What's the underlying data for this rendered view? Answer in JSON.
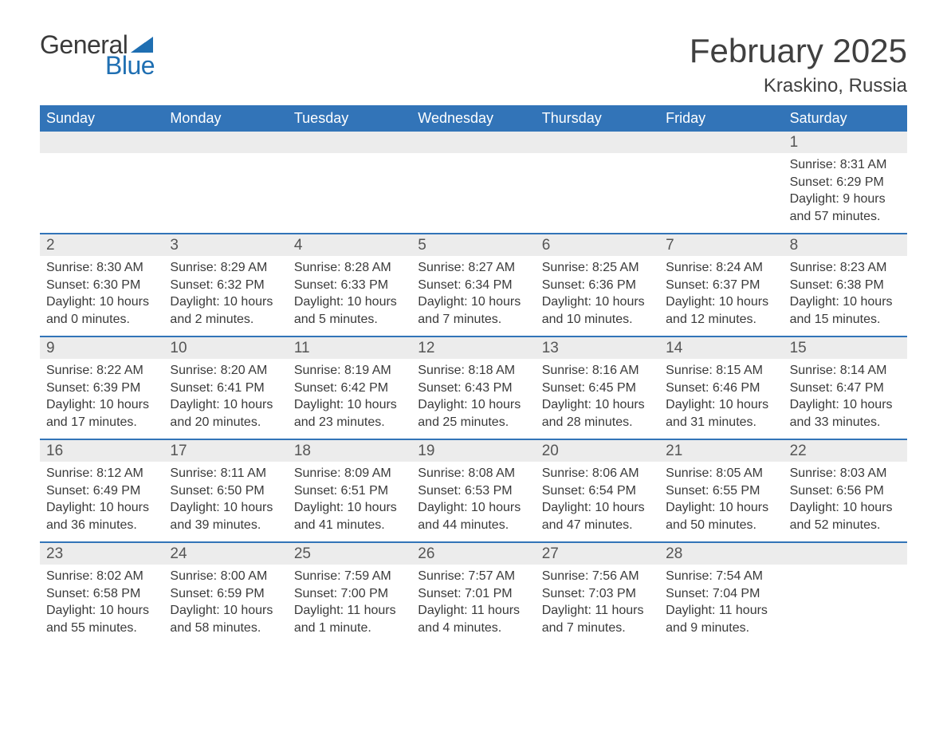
{
  "logo": {
    "word1": "General",
    "word2": "Blue",
    "flag_color": "#1f6fb2"
  },
  "title": "February 2025",
  "location": "Kraskino, Russia",
  "colors": {
    "header_bg": "#3274b8",
    "header_text": "#ffffff",
    "daynum_bg": "#ececec",
    "week_border": "#3274b8",
    "body_text": "#3a3a3a"
  },
  "day_names": [
    "Sunday",
    "Monday",
    "Tuesday",
    "Wednesday",
    "Thursday",
    "Friday",
    "Saturday"
  ],
  "weeks": [
    [
      null,
      null,
      null,
      null,
      null,
      null,
      {
        "n": "1",
        "sunrise": "8:31 AM",
        "sunset": "6:29 PM",
        "daylight": "9 hours and 57 minutes."
      }
    ],
    [
      {
        "n": "2",
        "sunrise": "8:30 AM",
        "sunset": "6:30 PM",
        "daylight": "10 hours and 0 minutes."
      },
      {
        "n": "3",
        "sunrise": "8:29 AM",
        "sunset": "6:32 PM",
        "daylight": "10 hours and 2 minutes."
      },
      {
        "n": "4",
        "sunrise": "8:28 AM",
        "sunset": "6:33 PM",
        "daylight": "10 hours and 5 minutes."
      },
      {
        "n": "5",
        "sunrise": "8:27 AM",
        "sunset": "6:34 PM",
        "daylight": "10 hours and 7 minutes."
      },
      {
        "n": "6",
        "sunrise": "8:25 AM",
        "sunset": "6:36 PM",
        "daylight": "10 hours and 10 minutes."
      },
      {
        "n": "7",
        "sunrise": "8:24 AM",
        "sunset": "6:37 PM",
        "daylight": "10 hours and 12 minutes."
      },
      {
        "n": "8",
        "sunrise": "8:23 AM",
        "sunset": "6:38 PM",
        "daylight": "10 hours and 15 minutes."
      }
    ],
    [
      {
        "n": "9",
        "sunrise": "8:22 AM",
        "sunset": "6:39 PM",
        "daylight": "10 hours and 17 minutes."
      },
      {
        "n": "10",
        "sunrise": "8:20 AM",
        "sunset": "6:41 PM",
        "daylight": "10 hours and 20 minutes."
      },
      {
        "n": "11",
        "sunrise": "8:19 AM",
        "sunset": "6:42 PM",
        "daylight": "10 hours and 23 minutes."
      },
      {
        "n": "12",
        "sunrise": "8:18 AM",
        "sunset": "6:43 PM",
        "daylight": "10 hours and 25 minutes."
      },
      {
        "n": "13",
        "sunrise": "8:16 AM",
        "sunset": "6:45 PM",
        "daylight": "10 hours and 28 minutes."
      },
      {
        "n": "14",
        "sunrise": "8:15 AM",
        "sunset": "6:46 PM",
        "daylight": "10 hours and 31 minutes."
      },
      {
        "n": "15",
        "sunrise": "8:14 AM",
        "sunset": "6:47 PM",
        "daylight": "10 hours and 33 minutes."
      }
    ],
    [
      {
        "n": "16",
        "sunrise": "8:12 AM",
        "sunset": "6:49 PM",
        "daylight": "10 hours and 36 minutes."
      },
      {
        "n": "17",
        "sunrise": "8:11 AM",
        "sunset": "6:50 PM",
        "daylight": "10 hours and 39 minutes."
      },
      {
        "n": "18",
        "sunrise": "8:09 AM",
        "sunset": "6:51 PM",
        "daylight": "10 hours and 41 minutes."
      },
      {
        "n": "19",
        "sunrise": "8:08 AM",
        "sunset": "6:53 PM",
        "daylight": "10 hours and 44 minutes."
      },
      {
        "n": "20",
        "sunrise": "8:06 AM",
        "sunset": "6:54 PM",
        "daylight": "10 hours and 47 minutes."
      },
      {
        "n": "21",
        "sunrise": "8:05 AM",
        "sunset": "6:55 PM",
        "daylight": "10 hours and 50 minutes."
      },
      {
        "n": "22",
        "sunrise": "8:03 AM",
        "sunset": "6:56 PM",
        "daylight": "10 hours and 52 minutes."
      }
    ],
    [
      {
        "n": "23",
        "sunrise": "8:02 AM",
        "sunset": "6:58 PM",
        "daylight": "10 hours and 55 minutes."
      },
      {
        "n": "24",
        "sunrise": "8:00 AM",
        "sunset": "6:59 PM",
        "daylight": "10 hours and 58 minutes."
      },
      {
        "n": "25",
        "sunrise": "7:59 AM",
        "sunset": "7:00 PM",
        "daylight": "11 hours and 1 minute."
      },
      {
        "n": "26",
        "sunrise": "7:57 AM",
        "sunset": "7:01 PM",
        "daylight": "11 hours and 4 minutes."
      },
      {
        "n": "27",
        "sunrise": "7:56 AM",
        "sunset": "7:03 PM",
        "daylight": "11 hours and 7 minutes."
      },
      {
        "n": "28",
        "sunrise": "7:54 AM",
        "sunset": "7:04 PM",
        "daylight": "11 hours and 9 minutes."
      },
      null
    ]
  ],
  "labels": {
    "sunrise": "Sunrise: ",
    "sunset": "Sunset: ",
    "daylight": "Daylight: "
  }
}
